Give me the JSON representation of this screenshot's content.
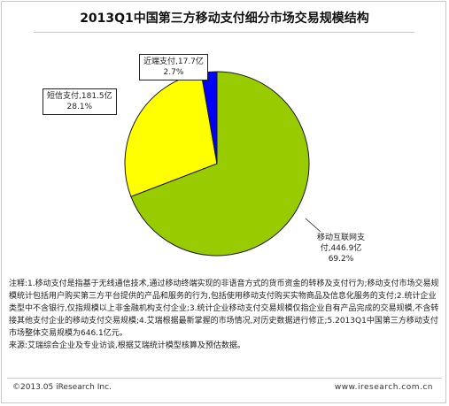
{
  "chart_data": {
    "type": "pie",
    "title": "2013Q1中国第三方移动支付细分市场交易规模结构",
    "series": [
      {
        "label": "移动互联网支付,446.9亿",
        "value": 446.9,
        "percent": "69.2%",
        "color": "#99cc00"
      },
      {
        "label": "短信支付,181.5亿",
        "value": 181.5,
        "percent": "28.1%",
        "color": "#ffff00"
      },
      {
        "label": "近端支付,17.7亿",
        "value": 17.7,
        "percent": "2.7%",
        "color": "#0000ff"
      }
    ]
  },
  "labels": {
    "mobile_internet": {
      "line1": "移动互联网支",
      "line2": "付,446.9亿",
      "line3": "69.2%"
    },
    "sms": {
      "line1": "短信支付,181.5亿",
      "line2": "28.1%"
    },
    "proximity": {
      "line1": "近端支付,17.7亿",
      "line2": "2.7%"
    }
  },
  "notes": {
    "note": "注释:1.移动支付是指基于无线通信技术,通过移动终端实现的非语音方式的货币资金的转移及支付行为;移动支付市场交易规模统计包括用户购买第三方平台提供的产品和服务的行为,包括使用移动支付购买实物商品及信息化服务的支付;2.统计企业类型中不含银行,仅指规模以上非金融机构支付企业;3.统计企业移动支付交易规模仅指企业自有产品完成的交易规模,不含转接其他支付企业的移动支付交易规模;4.艾瑞根据最新掌握的市场情况,对历史数据进行修正;5.2013Q1中国第三方移动支付市场整体交易规模为646.1亿元。",
    "source": "来源:艾瑞综合企业及专业访谈,根据艾瑞统计模型核算及预估数据。"
  },
  "footer": {
    "copyright": "©2013.05 iResearch Inc.",
    "website": "www.iresearch.com.cn"
  }
}
